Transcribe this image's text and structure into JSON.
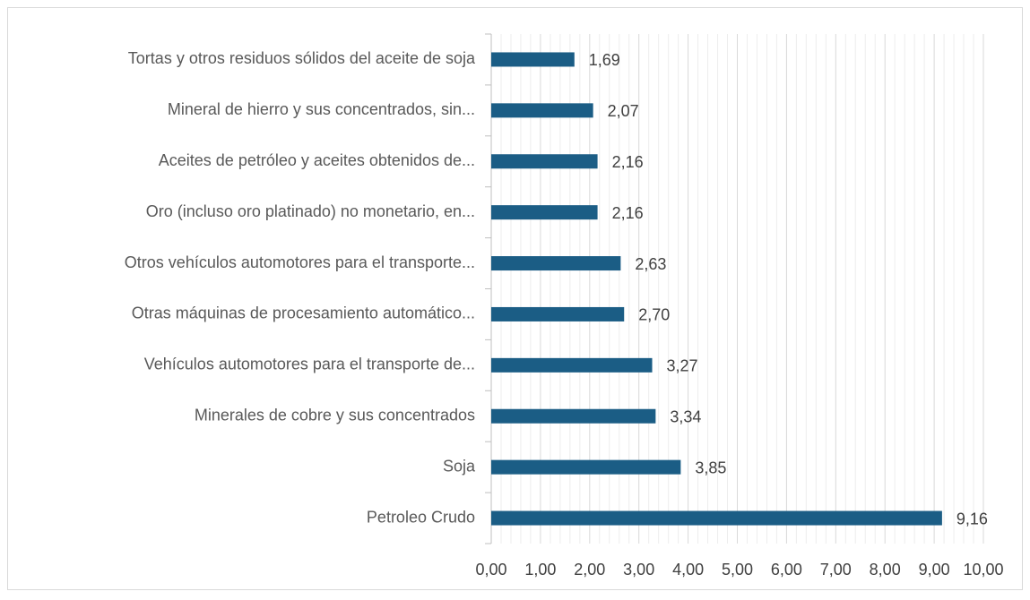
{
  "chart_data": {
    "type": "bar",
    "orientation": "horizontal",
    "categories": [
      "Tortas y otros residuos sólidos del aceite de soja",
      "Mineral de hierro y sus concentrados, sin...",
      "Aceites de petróleo y aceites obtenidos de...",
      "Oro (incluso oro platinado) no monetario, en...",
      "Otros vehículos automotores para el transporte...",
      "Otras máquinas de procesamiento automático...",
      "Vehículos automotores para el transporte de...",
      "Minerales de cobre y sus concentrados",
      "Soja",
      "Petroleo Crudo"
    ],
    "values": [
      1.69,
      2.07,
      2.16,
      2.16,
      2.63,
      2.7,
      3.27,
      3.34,
      3.85,
      9.16
    ],
    "value_labels": [
      "1,69",
      "2,07",
      "2,16",
      "2,16",
      "2,63",
      "2,70",
      "3,27",
      "3,34",
      "3,85",
      "9,16"
    ],
    "color": "#1b5d85",
    "xlim": [
      0,
      10
    ],
    "xticks": [
      {
        "value": 0,
        "label": "0,00"
      },
      {
        "value": 1,
        "label": "1,00"
      },
      {
        "value": 2,
        "label": "2,00"
      },
      {
        "value": 3,
        "label": "3,00"
      },
      {
        "value": 4,
        "label": "4,00"
      },
      {
        "value": 5,
        "label": "5,00"
      },
      {
        "value": 6,
        "label": "6,00"
      },
      {
        "value": 7,
        "label": "7,00"
      },
      {
        "value": 8,
        "label": "8,00"
      },
      {
        "value": 9,
        "label": "9,00"
      },
      {
        "value": 10,
        "label": "10,00"
      }
    ],
    "minor_xticks": [
      0.2,
      0.4,
      0.6,
      0.8,
      1.2,
      1.4,
      1.6,
      1.8,
      2.2,
      2.4,
      2.6,
      2.8,
      3.2,
      3.4,
      3.6,
      3.8,
      4.2,
      4.4,
      4.6,
      4.8,
      5.2,
      5.4,
      5.6,
      5.8,
      6.2,
      6.4,
      6.6,
      6.8,
      7.2,
      7.4,
      7.6,
      7.8,
      8.2,
      8.4,
      8.6,
      8.8,
      9.2,
      9.4,
      9.6,
      9.8
    ],
    "grid": true
  }
}
